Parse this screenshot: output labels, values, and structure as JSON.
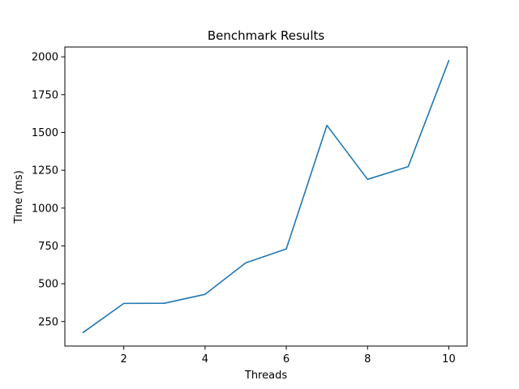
{
  "chart_data": {
    "type": "line",
    "title": "Benchmark Results",
    "xlabel": "Threads",
    "ylabel": "Time (ms)",
    "x": [
      1,
      2,
      3,
      4,
      5,
      6,
      7,
      8,
      9,
      10
    ],
    "series": [
      {
        "color": "#1f77b4",
        "values": [
          178,
          370,
          371,
          430,
          638,
          730,
          1547,
          1190,
          1274,
          1975
        ]
      }
    ],
    "xlim": [
      0.55,
      10.45
    ],
    "ylim": [
      88,
      2065
    ],
    "xticks": [
      2,
      4,
      6,
      8,
      10
    ],
    "yticks": [
      250,
      500,
      750,
      1000,
      1250,
      1500,
      1750,
      2000
    ],
    "grid": false,
    "legend": "none"
  }
}
